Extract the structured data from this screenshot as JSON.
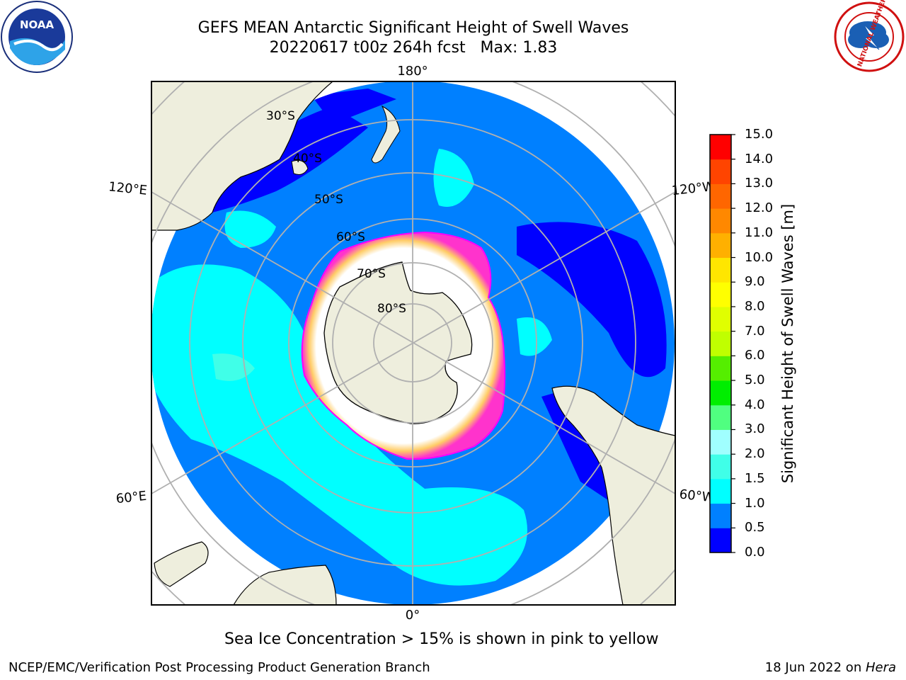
{
  "title": {
    "line1": "GEFS MEAN Antarctic Significant Height of Swell Waves",
    "line2": "20220617 t00z 264h fcst   Max: 1.83"
  },
  "logos": {
    "noaa": {
      "text": "NOAA",
      "icon": "noaa-logo-icon"
    },
    "nws": {
      "text": "NATIONAL WEATHER SERVICE",
      "icon": "nws-logo-icon"
    }
  },
  "map": {
    "projection": "south-polar-stereographic",
    "lon_labels": {
      "top": "180°",
      "bottom": "0°",
      "left_upper": "120°E",
      "left_lower": "60°E",
      "right_upper": "120°W",
      "right_lower": "60°W"
    },
    "lat_labels": [
      "30°S",
      "40°S",
      "50°S",
      "60°S",
      "70°S",
      "80°S"
    ],
    "colors": {
      "ocean_low": "#0080ff",
      "ocean_very_low": "#0000ff",
      "swell_1_to_1_5": "#00ffff",
      "land": "#eeeedd",
      "sea_ice_edge": "#ff00ff",
      "ice": "#ffffff",
      "grid": "#b0b0b0"
    }
  },
  "colorbar": {
    "label": "Significant Height of Swell Waves [m]",
    "ticks": [
      "0.0",
      "0.5",
      "1.0",
      "1.5",
      "2.0",
      "3.0",
      "4.0",
      "5.0",
      "6.0",
      "7.0",
      "8.0",
      "9.0",
      "10.0",
      "11.0",
      "12.0",
      "13.0",
      "14.0",
      "15.0"
    ],
    "colors": [
      "#0000ff",
      "#0080ff",
      "#00ffff",
      "#40ffe8",
      "#a0ffff",
      "#50ff80",
      "#00ee00",
      "#55ee00",
      "#c0ff00",
      "#e0ff00",
      "#ffff00",
      "#ffe600",
      "#ffb000",
      "#ff8800",
      "#ff6600",
      "#ff4400",
      "#ff0000"
    ]
  },
  "caption": "Sea Ice Concentration > 15% is shown in pink to yellow",
  "footer": {
    "left": "NCEP/EMC/Verification Post Processing Product Generation Branch",
    "right_date": "18 Jun 2022 on ",
    "right_host": "Hera"
  }
}
